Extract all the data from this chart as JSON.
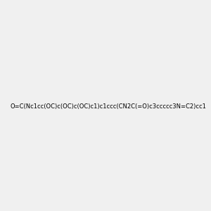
{
  "smiles": "O=C(Nc1cc(OC)c(OC)c(OC)c1)c1ccc(CN2C(=O)c3ccccc3N=C2)cc1",
  "image_size": 300,
  "background_color": "#f0f0f0",
  "atom_colors": {
    "N": "#0000ff",
    "O": "#ff0000",
    "H_on_N": "#008080"
  }
}
